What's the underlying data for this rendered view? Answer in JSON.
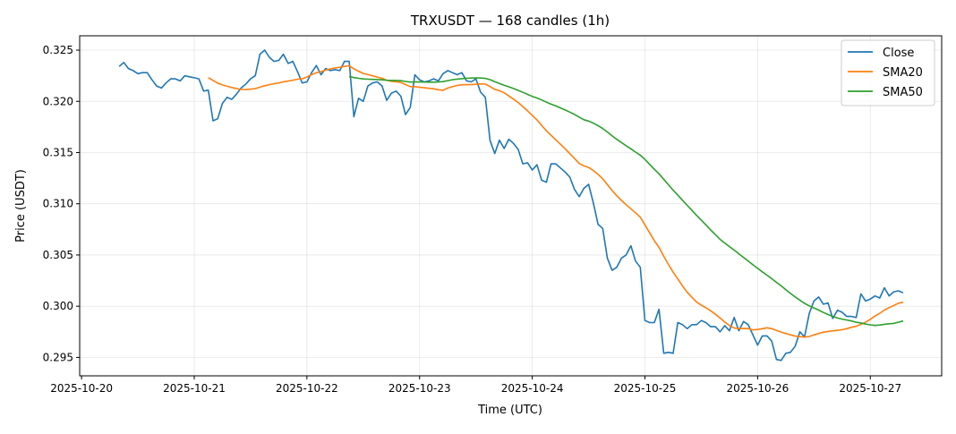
{
  "chart_data": {
    "type": "line",
    "title": "TRXUSDT — 168 candles (1h)",
    "xlabel": "Time (UTC)",
    "ylabel": "Price (USDT)",
    "x_start": "2025-10-20 08:00",
    "x_interval_hours": 1,
    "xlim_hours_from_2025_10_20": [
      -0.4,
      183.2
    ],
    "ylim": [
      0.2932,
      0.3264
    ],
    "grid": true,
    "legend_position": "top-right",
    "x_ticks": [
      {
        "label": "2025-10-20",
        "hours": 0
      },
      {
        "label": "2025-10-21",
        "hours": 24
      },
      {
        "label": "2025-10-22",
        "hours": 48
      },
      {
        "label": "2025-10-23",
        "hours": 72
      },
      {
        "label": "2025-10-24",
        "hours": 96
      },
      {
        "label": "2025-10-25",
        "hours": 120
      },
      {
        "label": "2025-10-26",
        "hours": 144
      },
      {
        "label": "2025-10-27",
        "hours": 168
      }
    ],
    "y_ticks": [
      {
        "label": "0.295",
        "value": 0.295
      },
      {
        "label": "0.300",
        "value": 0.3
      },
      {
        "label": "0.305",
        "value": 0.305
      },
      {
        "label": "0.310",
        "value": 0.31
      },
      {
        "label": "0.315",
        "value": 0.315
      },
      {
        "label": "0.320",
        "value": 0.32
      },
      {
        "label": "0.325",
        "value": 0.325
      }
    ],
    "series": [
      {
        "name": "Close",
        "color": "#1f77b4",
        "values": [
          0.3234,
          0.3238,
          0.3232,
          0.323,
          0.3227,
          0.3228,
          0.3228,
          0.3221,
          0.3215,
          0.3213,
          0.3218,
          0.3222,
          0.3222,
          0.322,
          0.3225,
          0.3224,
          0.3223,
          0.3222,
          0.321,
          0.3211,
          0.3181,
          0.3183,
          0.3198,
          0.3204,
          0.3202,
          0.3207,
          0.3213,
          0.3217,
          0.3222,
          0.3225,
          0.3246,
          0.325,
          0.3243,
          0.3239,
          0.324,
          0.3246,
          0.3237,
          0.3239,
          0.3229,
          0.3218,
          0.3219,
          0.3228,
          0.3235,
          0.3226,
          0.3232,
          0.323,
          0.3231,
          0.323,
          0.3239,
          0.3239,
          0.3185,
          0.3203,
          0.32,
          0.3215,
          0.3218,
          0.3219,
          0.3215,
          0.3201,
          0.3208,
          0.321,
          0.3205,
          0.3187,
          0.3194,
          0.3226,
          0.3221,
          0.3219,
          0.322,
          0.3222,
          0.322,
          0.3227,
          0.323,
          0.3228,
          0.3226,
          0.3228,
          0.322,
          0.3219,
          0.3222,
          0.3209,
          0.3204,
          0.3162,
          0.3149,
          0.3162,
          0.3154,
          0.3163,
          0.3159,
          0.3153,
          0.3139,
          0.314,
          0.3133,
          0.3138,
          0.3123,
          0.3121,
          0.3139,
          0.3139,
          0.3135,
          0.3131,
          0.3126,
          0.3114,
          0.3107,
          0.3115,
          0.3119,
          0.3101,
          0.308,
          0.3076,
          0.3047,
          0.3035,
          0.3038,
          0.3047,
          0.305,
          0.3059,
          0.3044,
          0.3038,
          0.2986,
          0.2984,
          0.2984,
          0.2997,
          0.2954,
          0.2955,
          0.2954,
          0.2984,
          0.2982,
          0.2978,
          0.2982,
          0.2982,
          0.2986,
          0.2984,
          0.298,
          0.298,
          0.2975,
          0.2981,
          0.2976,
          0.2989,
          0.2976,
          0.2985,
          0.2982,
          0.2972,
          0.2962,
          0.2971,
          0.2971,
          0.2966,
          0.2948,
          0.2947,
          0.2954,
          0.2955,
          0.2961,
          0.2975,
          0.297,
          0.2993,
          0.3005,
          0.3009,
          0.3002,
          0.3003,
          0.2988,
          0.2996,
          0.2994,
          0.299,
          0.299,
          0.2989,
          0.3012,
          0.3005,
          0.3007,
          0.301,
          0.3008,
          0.3018,
          0.301,
          0.3014,
          0.3015,
          0.3013
        ]
      },
      {
        "name": "SMA20",
        "color": "#ff7f0e",
        "window": 20
      },
      {
        "name": "SMA50",
        "color": "#2ca02c",
        "window": 50
      }
    ]
  }
}
